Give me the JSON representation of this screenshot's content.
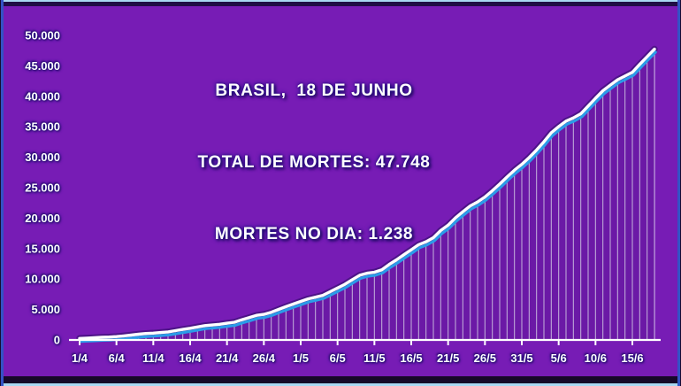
{
  "title": {
    "line1": "BRASIL,  18 DE JUNHO",
    "line2": "TOTAL DE MORTES: 47.748",
    "line3": "MORTES NO DIA: 1.238"
  },
  "colors": {
    "background": "#771cb5",
    "line_main": "#ffffff",
    "line_secondary": "#2b9ce8",
    "line_glow": "#1a0852",
    "drop_line": "#eae2fa",
    "axis": "#ffffff",
    "label_text": "#ffffff",
    "text_glow": "#1c0b5e",
    "frame_outer": "#a9d8f2",
    "frame_dark": "#160829",
    "frame_side": "#3352c4",
    "area_below": "rgba(28,6,70,0.13)"
  },
  "y_axis": {
    "tick_values": [
      0,
      5000,
      10000,
      15000,
      20000,
      25000,
      30000,
      35000,
      40000,
      45000,
      50000
    ],
    "tick_labels": [
      "0",
      "5.000",
      "10.000",
      "15.000",
      "20.000",
      "25.000",
      "30.000",
      "35.000",
      "40.000",
      "45.000",
      "50.000"
    ]
  },
  "x_axis": {
    "tick_labels": [
      "1/4",
      "6/4",
      "11/4",
      "16/4",
      "21/4",
      "26/4",
      "1/5",
      "6/5",
      "11/5",
      "16/5",
      "21/5",
      "26/5",
      "31/5",
      "5/6",
      "10/6",
      "15/6"
    ]
  },
  "chart_data": {
    "type": "line",
    "title": "BRASIL, 18 DE JUNHO",
    "subtitle": [
      "TOTAL DE MORTES: 47.748",
      "MORTES NO DIA: 1.238"
    ],
    "xlabel": "",
    "ylabel": "",
    "ylim": [
      0,
      50000
    ],
    "grid": false,
    "legend": false,
    "x_tick_labels": [
      "1/4",
      "6/4",
      "11/4",
      "16/4",
      "21/4",
      "26/4",
      "1/5",
      "6/5",
      "11/5",
      "16/5",
      "21/5",
      "26/5",
      "31/5",
      "5/6",
      "10/6",
      "15/6"
    ],
    "total_deaths": "47.748",
    "deaths_on_day": "1.238",
    "dates": [
      "1/4",
      "2/4",
      "3/4",
      "4/4",
      "5/4",
      "6/4",
      "7/4",
      "8/4",
      "9/4",
      "10/4",
      "11/4",
      "12/4",
      "13/4",
      "14/4",
      "15/4",
      "16/4",
      "17/4",
      "18/4",
      "19/4",
      "20/4",
      "21/4",
      "22/4",
      "23/4",
      "24/4",
      "25/4",
      "26/4",
      "27/4",
      "28/4",
      "29/4",
      "30/4",
      "1/5",
      "2/5",
      "3/5",
      "4/5",
      "5/5",
      "6/5",
      "7/5",
      "8/5",
      "9/5",
      "10/5",
      "11/5",
      "12/5",
      "13/5",
      "14/5",
      "15/5",
      "16/5",
      "17/5",
      "18/5",
      "19/5",
      "20/5",
      "21/5",
      "22/5",
      "23/5",
      "24/5",
      "25/5",
      "26/5",
      "27/5",
      "28/5",
      "29/5",
      "30/5",
      "31/5",
      "1/6",
      "2/6",
      "3/6",
      "4/6",
      "5/6",
      "6/6",
      "7/6",
      "8/6",
      "9/6",
      "10/6",
      "11/6",
      "12/6",
      "13/6",
      "14/6",
      "15/6",
      "16/6",
      "17/6",
      "18/6"
    ],
    "values": [
      240,
      299,
      359,
      432,
      486,
      553,
      667,
      800,
      941,
      1056,
      1124,
      1223,
      1328,
      1532,
      1736,
      1924,
      2141,
      2354,
      2462,
      2575,
      2741,
      2906,
      3313,
      3670,
      4045,
      4205,
      4543,
      5017,
      5466,
      5901,
      6329,
      6750,
      7025,
      7321,
      7921,
      8536,
      9146,
      9897,
      10627,
      10956,
      11123,
      11519,
      12400,
      13149,
      13993,
      14817,
      15633,
      16118,
      16792,
      17971,
      18859,
      20047,
      21048,
      22013,
      22666,
      23473,
      24512,
      25598,
      26754,
      27878,
      28834,
      29937,
      31199,
      32548,
      34021,
      35026,
      35930,
      36455,
      37134,
      38406,
      39680,
      40919,
      41828,
      42720,
      43332,
      43959,
      45241,
      46510,
      47748
    ]
  }
}
